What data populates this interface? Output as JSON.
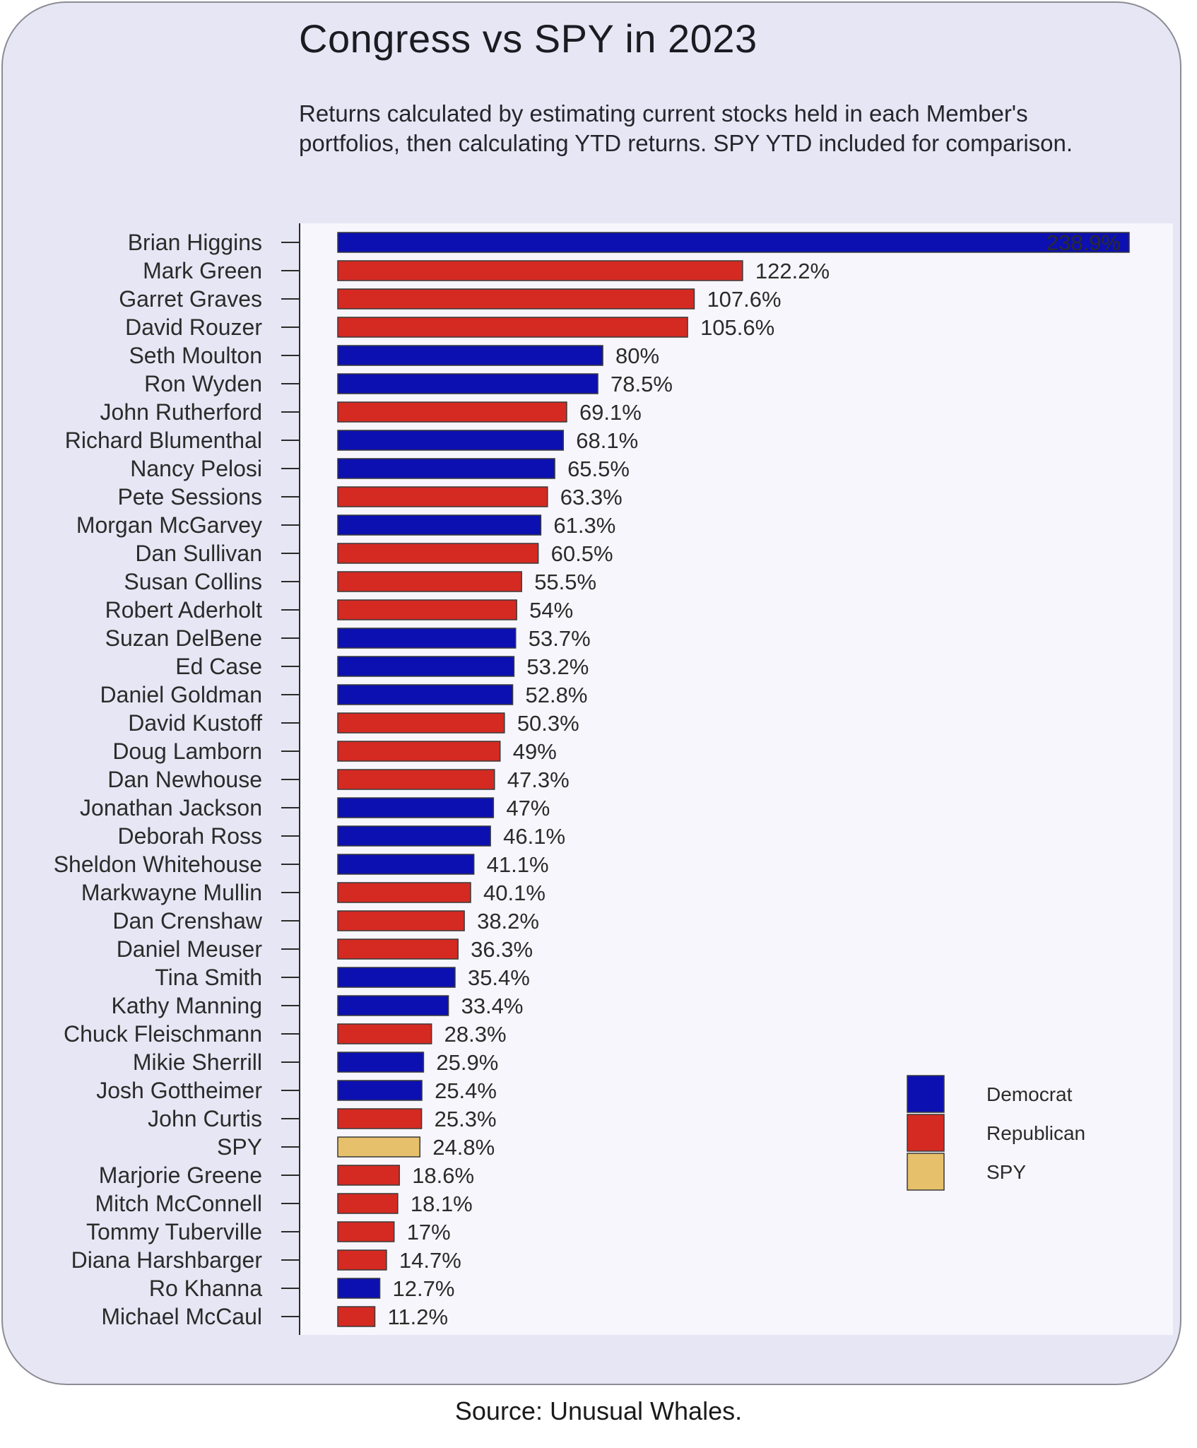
{
  "title": "Congress vs SPY in 2023",
  "subtitle": "Returns calculated by estimating current stocks held in each Member's portfolios, then calculating YTD returns. SPY YTD included for comparison.",
  "source": "Source: Unusual Whales.",
  "colors": {
    "Democrat": "#0c10b0",
    "Republican": "#d42a22",
    "SPY": "#e6c06a",
    "plot_background": "#f6f6fc",
    "card_background": "#e7e6f4"
  },
  "chart_data": {
    "type": "bar",
    "orientation": "horizontal",
    "categories": [
      "Brian Higgins",
      "Mark Green",
      "Garret Graves",
      "David Rouzer",
      "Seth Moulton",
      "Ron Wyden",
      "John Rutherford",
      "Richard Blumenthal",
      "Nancy Pelosi",
      "Pete Sessions",
      "Morgan McGarvey",
      "Dan Sullivan",
      "Susan Collins",
      "Robert Aderholt",
      "Suzan DelBene",
      "Ed Case",
      "Daniel Goldman",
      "David Kustoff",
      "Doug Lamborn",
      "Dan Newhouse",
      "Jonathan Jackson",
      "Deborah Ross",
      "Sheldon Whitehouse",
      "Markwayne Mullin",
      "Dan Crenshaw",
      "Daniel Meuser",
      "Tina Smith",
      "Kathy Manning",
      "Chuck Fleischmann",
      "Mikie Sherrill",
      "Josh Gottheimer",
      "John Curtis",
      "SPY",
      "Marjorie Greene",
      "Mitch McConnell",
      "Tommy Tuberville",
      "Diana Harshbarger",
      "Ro Khanna",
      "Michael McCaul"
    ],
    "values": [
      238.9,
      122.2,
      107.6,
      105.6,
      80,
      78.5,
      69.1,
      68.1,
      65.5,
      63.3,
      61.3,
      60.5,
      55.5,
      54,
      53.7,
      53.2,
      52.8,
      50.3,
      49,
      47.3,
      47,
      46.1,
      41.1,
      40.1,
      38.2,
      36.3,
      35.4,
      33.4,
      28.3,
      25.9,
      25.4,
      25.3,
      24.8,
      18.6,
      18.1,
      17,
      14.7,
      12.7,
      11.2
    ],
    "value_labels": [
      "238.9%",
      "122.2%",
      "107.6%",
      "105.6%",
      "80%",
      "78.5%",
      "69.1%",
      "68.1%",
      "65.5%",
      "63.3%",
      "61.3%",
      "60.5%",
      "55.5%",
      "54%",
      "53.7%",
      "53.2%",
      "52.8%",
      "50.3%",
      "49%",
      "47.3%",
      "47%",
      "46.1%",
      "41.1%",
      "40.1%",
      "38.2%",
      "36.3%",
      "35.4%",
      "33.4%",
      "28.3%",
      "25.9%",
      "25.4%",
      "25.3%",
      "24.8%",
      "18.6%",
      "18.1%",
      "17%",
      "14.7%",
      "12.7%",
      "11.2%"
    ],
    "groups": [
      "Democrat",
      "Republican",
      "Republican",
      "Republican",
      "Democrat",
      "Democrat",
      "Republican",
      "Democrat",
      "Democrat",
      "Republican",
      "Democrat",
      "Republican",
      "Republican",
      "Republican",
      "Democrat",
      "Democrat",
      "Democrat",
      "Republican",
      "Republican",
      "Republican",
      "Democrat",
      "Democrat",
      "Democrat",
      "Republican",
      "Republican",
      "Republican",
      "Democrat",
      "Democrat",
      "Republican",
      "Democrat",
      "Democrat",
      "Republican",
      "SPY",
      "Republican",
      "Republican",
      "Republican",
      "Republican",
      "Democrat",
      "Republican"
    ],
    "legend": {
      "entries": [
        "Democrat",
        "Republican",
        "SPY"
      ],
      "placement": "bottom-right"
    },
    "xlim": [
      0,
      238.9
    ],
    "xlabel": "",
    "ylabel": "",
    "grid": false
  }
}
